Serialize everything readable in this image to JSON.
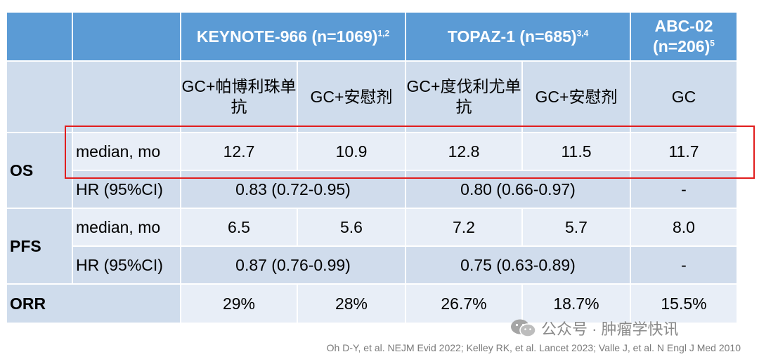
{
  "header": {
    "keynote": {
      "name": "KEYNOTE-966 (n=1069)",
      "refs": "1,2"
    },
    "topaz": {
      "name": "TOPAZ-1 (n=685)",
      "refs": "3,4"
    },
    "abc_line1": "ABC-02",
    "abc_line2": "(n=206)",
    "abc_refs": "5"
  },
  "arms": [
    "GC+帕博利珠单抗",
    "GC+安慰剂",
    "GC+度伐利尤单抗",
    "GC+安慰剂",
    "GC"
  ],
  "os": {
    "label": "OS",
    "median": {
      "label": "median, mo",
      "values": [
        "12.7",
        "10.9",
        "12.8",
        "11.5",
        "11.7"
      ]
    },
    "hr": {
      "label": "HR (95%CI)",
      "keynote": "0.83 (0.72-0.95)",
      "topaz": "0.80 (0.66-0.97)",
      "abc": "-"
    }
  },
  "pfs": {
    "label": "PFS",
    "median": {
      "label": "median, mo",
      "values": [
        "6.5",
        "5.6",
        "7.2",
        "5.7",
        "8.0"
      ]
    },
    "hr": {
      "label": "HR (95%CI)",
      "keynote": "0.87 (0.76-0.99)",
      "topaz": "0.75 (0.63-0.89)",
      "abc": "-"
    }
  },
  "orr": {
    "label": "ORR",
    "values": [
      "29%",
      "28%",
      "26.7%",
      "18.7%",
      "15.5%"
    ]
  },
  "watermark": {
    "text": "公众号 · 肿瘤学快讯",
    "icon": "wechat-icon"
  },
  "citation": "Oh D-Y, et al. NEJM Evid 2022; Kelley RK, et al. Lancet 2023; Valle J, et al. N Engl J Med 2010",
  "colors": {
    "header": "#5b9bd5",
    "band_dark": "#d0dcec",
    "band_light": "#e8eef7",
    "highlight": "#e11d1d"
  }
}
